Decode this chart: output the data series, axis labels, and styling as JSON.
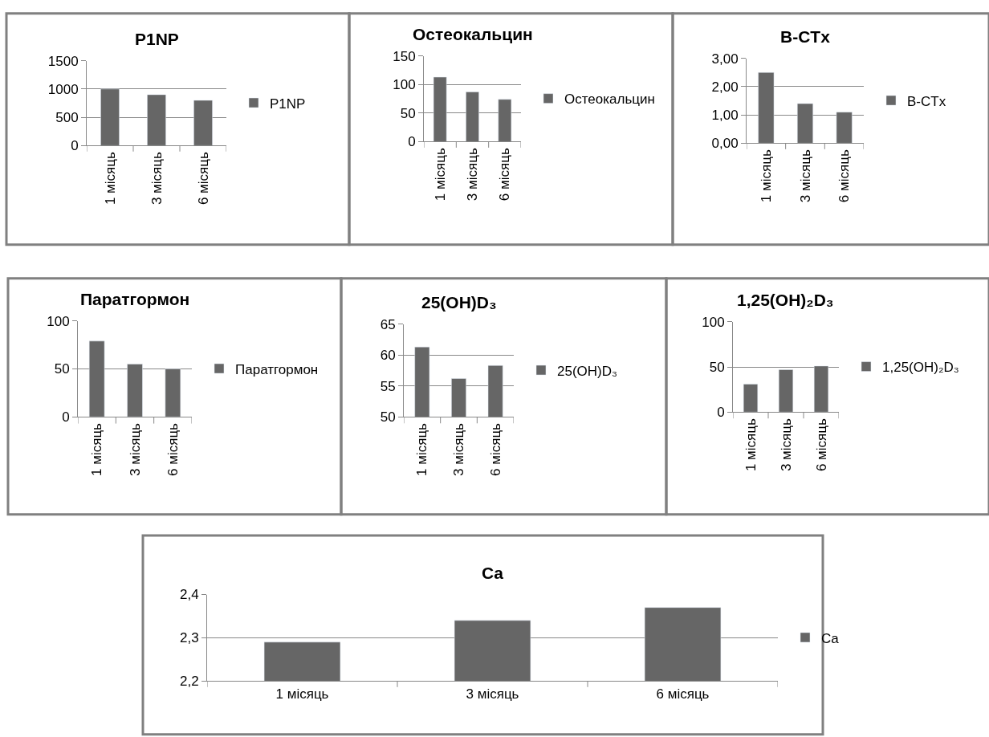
{
  "chart_data": [
    {
      "type": "bar",
      "title": "P1NP",
      "categories": [
        "1 місяць",
        "3 місяць",
        "6 місяць"
      ],
      "series": [
        {
          "name": "P1NP",
          "color": "#666666",
          "values": [
            1000,
            900,
            800
          ]
        }
      ],
      "ylim": [
        0,
        1500
      ],
      "yticks": [
        0,
        500,
        1000,
        1500
      ],
      "grid": "y",
      "legend": "right"
    },
    {
      "type": "bar",
      "title": "Остеокальцин",
      "categories": [
        "1 місяць",
        "3 місяць",
        "6 місяць"
      ],
      "series": [
        {
          "name": "Остеокальцин",
          "color": "#666666",
          "values": [
            113,
            87,
            74
          ]
        }
      ],
      "ylim": [
        0,
        150
      ],
      "yticks": [
        0,
        50,
        100,
        150
      ],
      "grid": "y",
      "legend": "right"
    },
    {
      "type": "bar",
      "title": "B-CTx",
      "categories": [
        "1 місяць",
        "3 місяць",
        "6 місяць"
      ],
      "series": [
        {
          "name": "B-CTx",
          "color": "#666666",
          "values": [
            2.5,
            1.4,
            1.1
          ]
        }
      ],
      "ylim": [
        0,
        3
      ],
      "yticks": [
        {
          "value": 0,
          "label": "0,00"
        },
        {
          "value": 1,
          "label": "1,00"
        },
        {
          "value": 2,
          "label": "2,00"
        },
        {
          "value": 3,
          "label": "3,00"
        }
      ],
      "grid": "y",
      "legend": "right"
    },
    {
      "type": "bar",
      "title": "Паратгормон",
      "categories": [
        "1 місяць",
        "3 місяць",
        "6 місяць"
      ],
      "series": [
        {
          "name": "Паратгормон",
          "color": "#666666",
          "values": [
            79,
            55,
            50
          ]
        }
      ],
      "ylim": [
        0,
        100
      ],
      "yticks": [
        0,
        50,
        100
      ],
      "grid": "y",
      "legend": "right"
    },
    {
      "type": "bar",
      "title": "25(OH)D₃",
      "categories": [
        "1 місяць",
        "3 місяць",
        "6 місяць"
      ],
      "series": [
        {
          "name": "25(OH)D₃",
          "color": "#666666",
          "values": [
            61.3,
            56.2,
            58.3
          ]
        }
      ],
      "ylim": [
        50,
        65
      ],
      "yticks": [
        50,
        55,
        60,
        65
      ],
      "grid": "y",
      "legend": "right"
    },
    {
      "type": "bar",
      "title": "1,25(OH)₂D₃",
      "categories": [
        "1 місяць",
        "3 місяць",
        "6 місяць"
      ],
      "series": [
        {
          "name": "1,25(OH)₂D₃",
          "color": "#666666",
          "values": [
            31,
            47,
            51
          ]
        }
      ],
      "ylim": [
        0,
        100
      ],
      "yticks": [
        0,
        50,
        100
      ],
      "grid": "y",
      "legend": "right"
    },
    {
      "type": "bar",
      "title": "Ca",
      "categories": [
        "1 місяць",
        "3 місяць",
        "6 місяць"
      ],
      "series": [
        {
          "name": "Ca",
          "color": "#666666",
          "values": [
            2.29,
            2.34,
            2.37
          ]
        }
      ],
      "ylim": [
        2.2,
        2.4
      ],
      "yticks": [
        {
          "value": 2.2,
          "label": "2,2"
        },
        {
          "value": 2.3,
          "label": "2,3"
        },
        {
          "value": 2.4,
          "label": "2,4"
        }
      ],
      "grid": "y",
      "legend": "right"
    }
  ]
}
